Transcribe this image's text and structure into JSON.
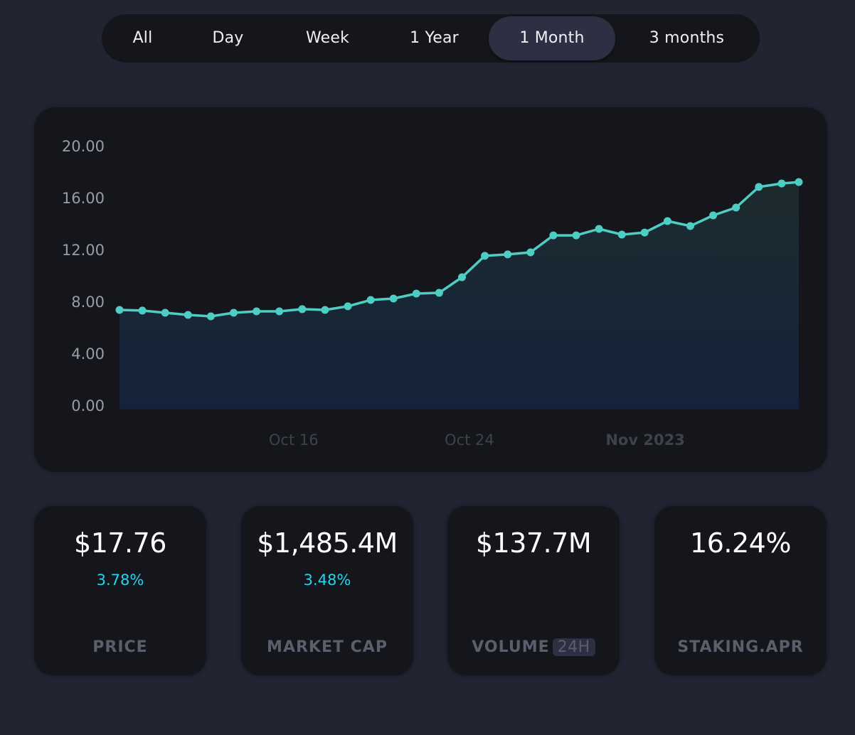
{
  "range_tabs": {
    "items": [
      {
        "label": "All",
        "active": false
      },
      {
        "label": "Day",
        "active": false
      },
      {
        "label": "Week",
        "active": false
      },
      {
        "label": "1 Year",
        "active": false
      },
      {
        "label": "1 Month",
        "active": true
      },
      {
        "label": "3 months",
        "active": false
      }
    ]
  },
  "chart_data": {
    "type": "area",
    "title": "",
    "xlabel": "",
    "ylabel": "",
    "ylim": [
      0,
      20
    ],
    "y_ticks": [
      "0.00",
      "4.00",
      "8.00",
      "12.00",
      "16.00",
      "20.00"
    ],
    "y_tick_values": [
      0,
      4,
      8,
      12,
      16,
      20
    ],
    "x_ticks": [
      {
        "label": "Oct 16",
        "index": 7.5,
        "bold": false
      },
      {
        "label": "Oct 24",
        "index": 15.2,
        "bold": false
      },
      {
        "label": "Nov 2023",
        "index": 22.9,
        "bold": true
      }
    ],
    "grid": false,
    "legend": "none",
    "line_color": "#4ecdc4",
    "series": [
      {
        "name": "Price",
        "values": [
          7.67,
          7.62,
          7.45,
          7.29,
          7.18,
          7.45,
          7.56,
          7.56,
          7.73,
          7.67,
          7.95,
          8.44,
          8.55,
          8.93,
          8.99,
          10.19,
          11.84,
          11.95,
          12.11,
          13.42,
          13.42,
          13.92,
          13.48,
          13.64,
          14.52,
          14.14,
          14.96,
          15.56,
          17.15,
          17.42,
          17.53
        ],
        "x_index": [
          0,
          1,
          2,
          3,
          4,
          5,
          6,
          7,
          8,
          9,
          10,
          11,
          12,
          13,
          14,
          15,
          16,
          17,
          18,
          19,
          20,
          21,
          22,
          23,
          24,
          25,
          26,
          27,
          28,
          29,
          29.75
        ]
      }
    ]
  },
  "stats": [
    {
      "value": "$17.76",
      "change": "3.78%",
      "label": "PRICE",
      "badge": null
    },
    {
      "value": "$1,485.4M",
      "change": "3.48%",
      "label": "MARKET CAP",
      "badge": null
    },
    {
      "value": "$137.7M",
      "change": "",
      "label": "VOLUME",
      "badge": "24H"
    },
    {
      "value": "16.24%",
      "change": "",
      "label": "STAKING.APR",
      "badge": null
    }
  ],
  "colors": {
    "background": "#212532",
    "card": "#15161b",
    "accent_line": "#4ecdc4",
    "change_positive": "#1fd6f0",
    "label_muted": "#5b5e6c"
  }
}
